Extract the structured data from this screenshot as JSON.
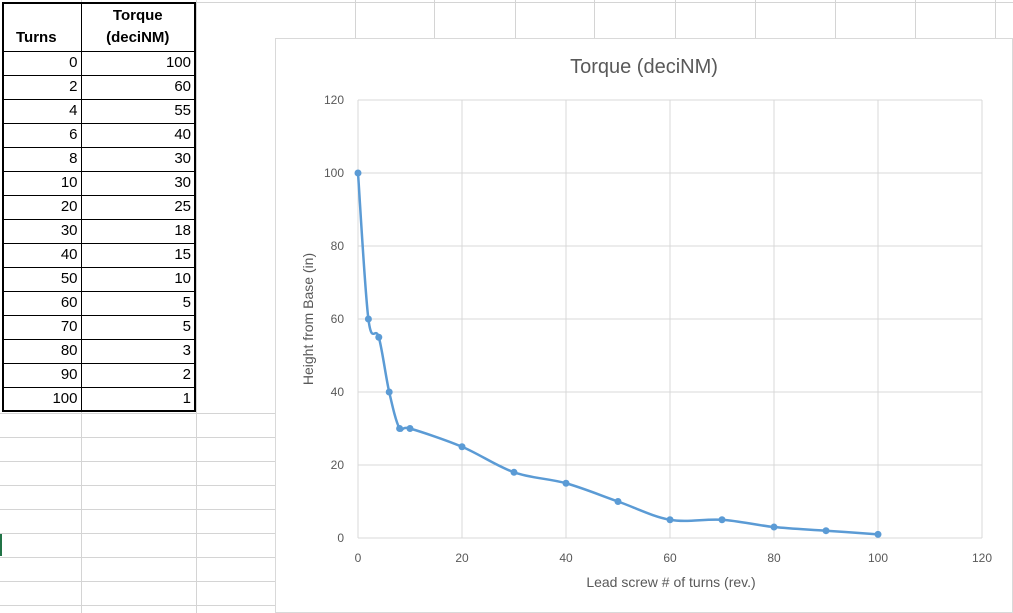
{
  "sheet": {
    "headers": {
      "turns": "Turns",
      "torque_line1": "Torque",
      "torque_line2": "(deciNM)"
    },
    "rows": [
      [
        "0",
        "100"
      ],
      [
        "2",
        "60"
      ],
      [
        "4",
        "55"
      ],
      [
        "6",
        "40"
      ],
      [
        "8",
        "30"
      ],
      [
        "10",
        "30"
      ],
      [
        "20",
        "25"
      ],
      [
        "30",
        "18"
      ],
      [
        "40",
        "15"
      ],
      [
        "50",
        "10"
      ],
      [
        "60",
        "5"
      ],
      [
        "70",
        "5"
      ],
      [
        "80",
        "3"
      ],
      [
        "90",
        "2"
      ],
      [
        "100",
        "1"
      ]
    ]
  },
  "chart_data": {
    "type": "line",
    "title": "Torque (deciNM)",
    "xlabel": "Lead screw # of turns (rev.)",
    "ylabel": "Height from Base (in)",
    "xlim": [
      0,
      120
    ],
    "ylim": [
      0,
      120
    ],
    "xticks": [
      0,
      20,
      40,
      60,
      80,
      100,
      120
    ],
    "yticks": [
      0,
      20,
      40,
      60,
      80,
      100,
      120
    ],
    "grid": true,
    "smooth": true,
    "color": "#5b9bd5",
    "series": [
      {
        "x": [
          0,
          2,
          4,
          6,
          8,
          10,
          20,
          30,
          40,
          50,
          60,
          70,
          80,
          90,
          100
        ],
        "y": [
          100,
          60,
          55,
          40,
          30,
          30,
          25,
          18,
          15,
          10,
          5,
          5,
          3,
          2,
          1
        ]
      }
    ]
  }
}
